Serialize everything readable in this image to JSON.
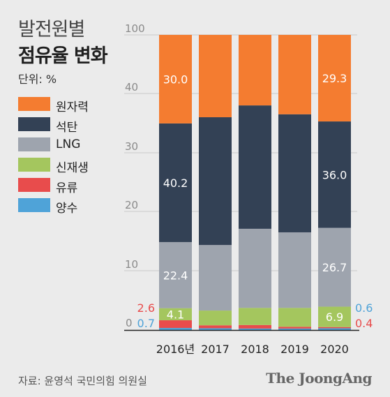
{
  "title_line1": "발전원별",
  "title_line2": "점유율 변화",
  "unit": "단위: %",
  "source": "자료: 윤영석 국민의힘 의원실",
  "logo": "The JoongAng",
  "colors": {
    "nuclear": "#f47c30",
    "coal": "#334155",
    "lng": "#9ea4ae",
    "renewable": "#a4c65e",
    "oil": "#e84c4c",
    "pumped": "#4fa3d8"
  },
  "chart_data": {
    "type": "bar",
    "stacked": true,
    "categories": [
      "2016년",
      "2017",
      "2018",
      "2019",
      "2020"
    ],
    "y_tick_labels": [
      "0",
      "10",
      "20",
      "30",
      "40",
      "100"
    ],
    "series": [
      {
        "name": "양수",
        "color": "#4fa3d8",
        "values": [
          0.7,
          0.6,
          0.5,
          0.5,
          0.6
        ]
      },
      {
        "name": "유류",
        "color": "#e84c4c",
        "values": [
          2.6,
          1.0,
          1.2,
          0.6,
          0.4
        ]
      },
      {
        "name": "신재생",
        "color": "#a4c65e",
        "values": [
          4.1,
          5.0,
          5.8,
          6.4,
          6.9
        ]
      },
      {
        "name": "LNG",
        "color": "#9ea4ae",
        "values": [
          22.4,
          22.2,
          26.8,
          25.6,
          26.7
        ]
      },
      {
        "name": "석탄",
        "color": "#334155",
        "values": [
          40.2,
          43.3,
          41.8,
          40.0,
          36.0
        ]
      },
      {
        "name": "원자력",
        "color": "#f47c30",
        "values": [
          30.0,
          27.9,
          23.9,
          26.9,
          29.3
        ]
      }
    ],
    "data_labels": [
      {
        "bar": 0,
        "series": "원자력",
        "text": "30.0",
        "color": "#ffffff"
      },
      {
        "bar": 0,
        "series": "석탄",
        "text": "40.2",
        "color": "#ffffff"
      },
      {
        "bar": 0,
        "series": "LNG",
        "text": "22.4",
        "color": "#ffffff"
      },
      {
        "bar": 0,
        "series": "신재생",
        "text": "4.1",
        "color": "#ffffff"
      },
      {
        "bar": 0,
        "series": "유류",
        "text": "2.6",
        "color": "#e84c4c",
        "outside": "left"
      },
      {
        "bar": 0,
        "series": "양수",
        "text": "0.7",
        "color": "#4fa3d8",
        "outside": "left"
      },
      {
        "bar": 4,
        "series": "원자력",
        "text": "29.3",
        "color": "#ffffff"
      },
      {
        "bar": 4,
        "series": "석탄",
        "text": "36.0",
        "color": "#ffffff"
      },
      {
        "bar": 4,
        "series": "LNG",
        "text": "26.7",
        "color": "#ffffff"
      },
      {
        "bar": 4,
        "series": "신재생",
        "text": "6.9",
        "color": "#ffffff"
      },
      {
        "bar": 4,
        "series": "양수",
        "text": "0.6",
        "color": "#4fa3d8",
        "outside": "right"
      },
      {
        "bar": 4,
        "series": "유류",
        "text": "0.4",
        "color": "#e84c4c",
        "outside": "right"
      }
    ],
    "legend": [
      {
        "label": "원자력",
        "color": "#f47c30"
      },
      {
        "label": "석탄",
        "color": "#334155"
      },
      {
        "label": "LNG",
        "color": "#9ea4ae"
      },
      {
        "label": "신재생",
        "color": "#a4c65e"
      },
      {
        "label": "유류",
        "color": "#e84c4c"
      },
      {
        "label": "양수",
        "color": "#4fa3d8"
      }
    ],
    "legend_position": "left",
    "grid": true
  }
}
